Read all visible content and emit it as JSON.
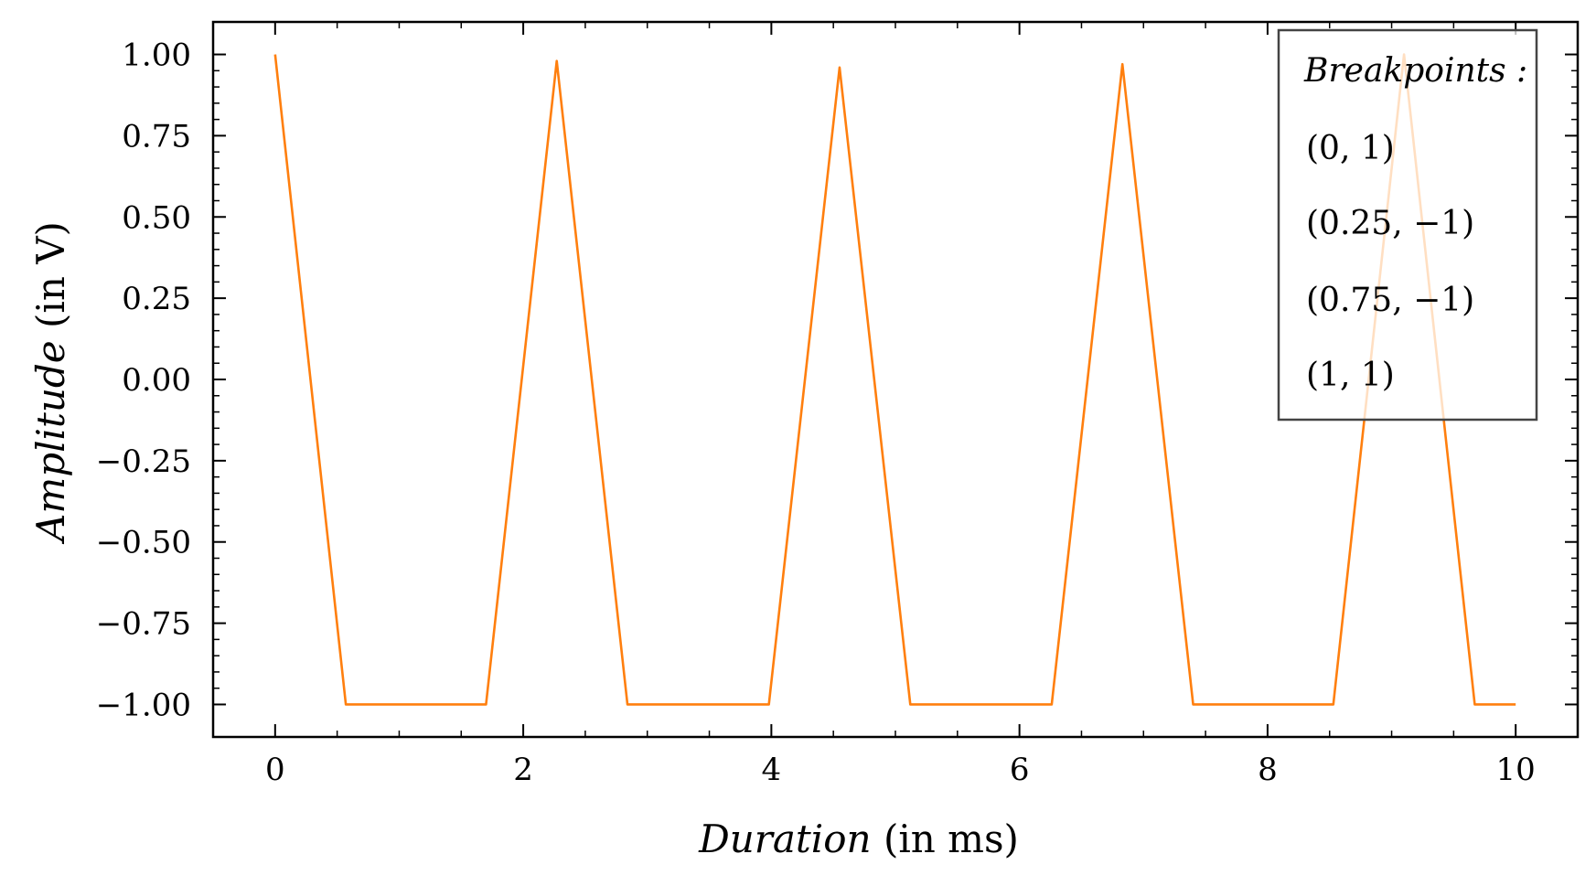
{
  "chart_data": {
    "type": "line",
    "title": "",
    "xlabel": {
      "main": "Duration",
      "paren": "(in ms)"
    },
    "ylabel": {
      "main": "Amplitude",
      "paren": "(in V)"
    },
    "xlim": [
      -0.5,
      10.5
    ],
    "ylim": [
      -1.1,
      1.1
    ],
    "xticks": [
      0,
      2,
      4,
      6,
      8,
      10
    ],
    "xtick_labels": [
      "0",
      "2",
      "4",
      "6",
      "8",
      "10"
    ],
    "xminor": [
      0.5,
      1,
      1.5,
      2.5,
      3,
      3.5,
      4.5,
      5,
      5.5,
      6.5,
      7,
      7.5,
      8.5,
      9,
      9.5
    ],
    "yticks": [
      1.0,
      0.75,
      0.5,
      0.25,
      0.0,
      -0.25,
      -0.5,
      -0.75,
      -1.0
    ],
    "ytick_labels": [
      "1.00",
      "0.75",
      "0.50",
      "0.25",
      "0.00",
      "−0.25",
      "−0.50",
      "−0.75",
      "−1.00"
    ],
    "grid": false,
    "legend": {
      "placement": "top-right",
      "title": "Breakpoints :",
      "entries": [
        "(0, 1)",
        "(0.25, −1)",
        "(0.75, −1)",
        "(1, 1)"
      ]
    },
    "series": [
      {
        "color": "#ff7f0e",
        "x": [
          0,
          0.57,
          1.7,
          2.27,
          2.84,
          3.98,
          4.55,
          5.12,
          6.26,
          6.83,
          7.4,
          8.53,
          9.1,
          9.67,
          10
        ],
        "y": [
          1.0,
          -1.0,
          -1.0,
          0.98,
          -1.0,
          -1.0,
          0.96,
          -1.0,
          -1.0,
          0.97,
          -1.0,
          -1.0,
          1.0,
          -1.0,
          -1.0
        ]
      }
    ]
  }
}
